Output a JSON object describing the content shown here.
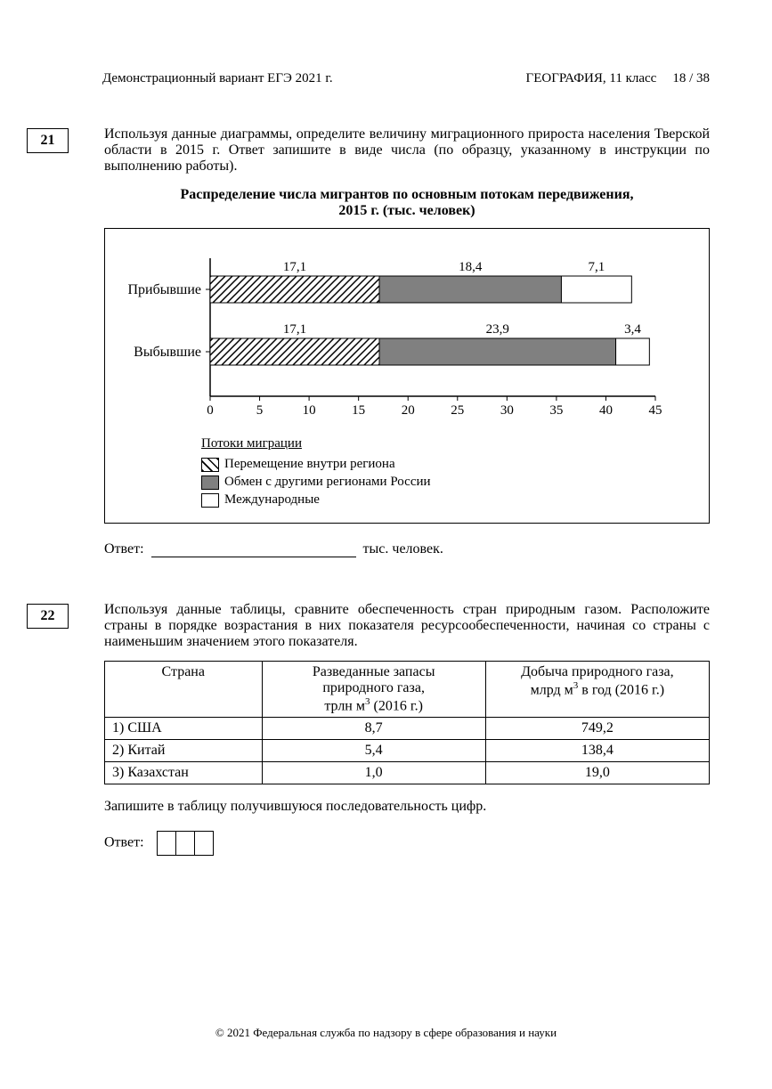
{
  "header": {
    "left": "Демонстрационный вариант  ЕГЭ 2021 г.",
    "subject": "ГЕОГРАФИЯ,  11 класс",
    "page": "18 / 38"
  },
  "task21": {
    "num": "21",
    "text": "Используя данные диаграммы, определите величину миграционного прироста населения Тверской области в 2015 г. Ответ запишите в виде числа (по образцу, указанному в инструкции по выполнению работы).",
    "chart_title_l1": "Распределение числа мигрантов по основным потокам передвижения,",
    "chart_title_l2": "2015 г. (тыс. человек)",
    "y_cat": [
      "Прибывшие",
      "Выбывшие"
    ],
    "series": [
      {
        "name": "Перемещение внутри региона",
        "fill": "hatch",
        "values": [
          17.1,
          17.1
        ],
        "labels": [
          "17,1",
          "17,1"
        ]
      },
      {
        "name": "Обмен с другими регионами России",
        "fill": "#808080",
        "values": [
          18.4,
          23.9
        ],
        "labels": [
          "18,4",
          "23,9"
        ]
      },
      {
        "name": "Международные",
        "fill": "#ffffff",
        "values": [
          7.1,
          3.4
        ],
        "labels": [
          "7,1",
          "3,4"
        ]
      }
    ],
    "x_axis": {
      "min": 0,
      "max": 45,
      "step": 5,
      "ticks": [
        "0",
        "5",
        "10",
        "15",
        "20",
        "25",
        "30",
        "35",
        "40",
        "45"
      ]
    },
    "legend_title": "Потоки миграции",
    "legend": [
      "Перемещение внутри региона",
      "Обмен с другими регионами России",
      "Международные"
    ],
    "answer_label": "Ответ:",
    "answer_unit": "тыс. человек."
  },
  "task22": {
    "num": "22",
    "text": "Используя данные таблицы, сравните обеспеченность стран природным газом. Расположите страны в порядке возрастания в них показателя ресурсообеспеченности, начиная со страны с наименьшим значением этого показателя.",
    "columns": [
      "Страна",
      "Разведанные запасы природного газа, трлн м³ (2016 г.)",
      "Добыча природного газа, млрд м³ в год (2016 г.)"
    ],
    "col1_l1": "Разведанные запасы",
    "col1_l2": "природного газа,",
    "col1_l3_a": "трлн м",
    "col1_l3_b": " (2016 г.)",
    "col2_l1": "Добыча природного газа,",
    "col2_l2_a": "млрд м",
    "col2_l2_b": " в год (2016 г.)",
    "rows": [
      [
        "1) США",
        "8,7",
        "749,2"
      ],
      [
        "2) Китай",
        "5,4",
        "138,4"
      ],
      [
        "3) Казахстан",
        "1,0",
        "19,0"
      ]
    ],
    "post_text": "Запишите в таблицу получившуюся последовательность цифр.",
    "answer_label": "Ответ:"
  },
  "footer": "© 2021 Федеральная служба по надзору в сфере образования и науки"
}
